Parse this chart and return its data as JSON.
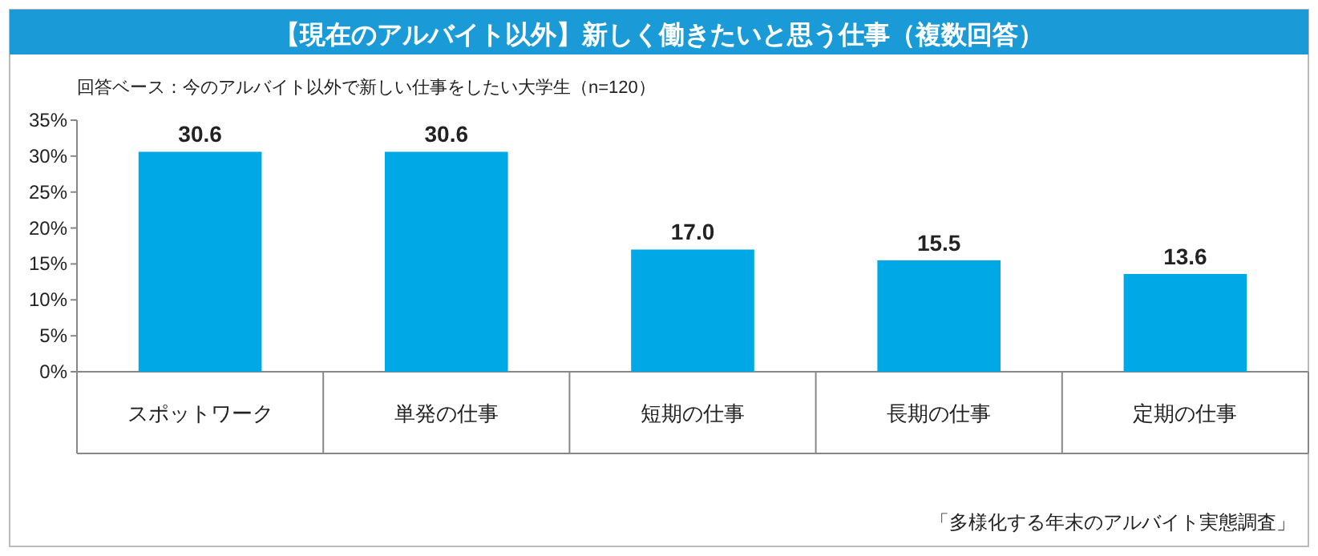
{
  "chart_data": {
    "type": "bar",
    "title": "【現在のアルバイト以外】新しく働きたいと思う仕事（複数回答）",
    "subtitle": "回答ベース：今のアルバイト以外で新しい仕事をしたい大学生（n=120）",
    "categories": [
      "スポットワーク",
      "単発の仕事",
      "短期の仕事",
      "長期の仕事",
      "定期の仕事"
    ],
    "values": [
      30.6,
      30.6,
      17.0,
      15.5,
      13.6
    ],
    "value_labels": [
      "30.6",
      "30.6",
      "17.0",
      "15.5",
      "13.6"
    ],
    "color": "#00a9e6",
    "ylim": [
      0,
      35
    ],
    "yticks": [
      {
        "value": 0,
        "label": "0%"
      },
      {
        "value": 5,
        "label": "5%"
      },
      {
        "value": 10,
        "label": "10%"
      },
      {
        "value": 15,
        "label": "15%"
      },
      {
        "value": 20,
        "label": "20%"
      },
      {
        "value": 25,
        "label": "25%"
      },
      {
        "value": 30,
        "label": "30%"
      },
      {
        "value": 35,
        "label": "35%"
      }
    ],
    "annotations": [
      "「多様化する年末のアルバイト実態調査」"
    ]
  }
}
